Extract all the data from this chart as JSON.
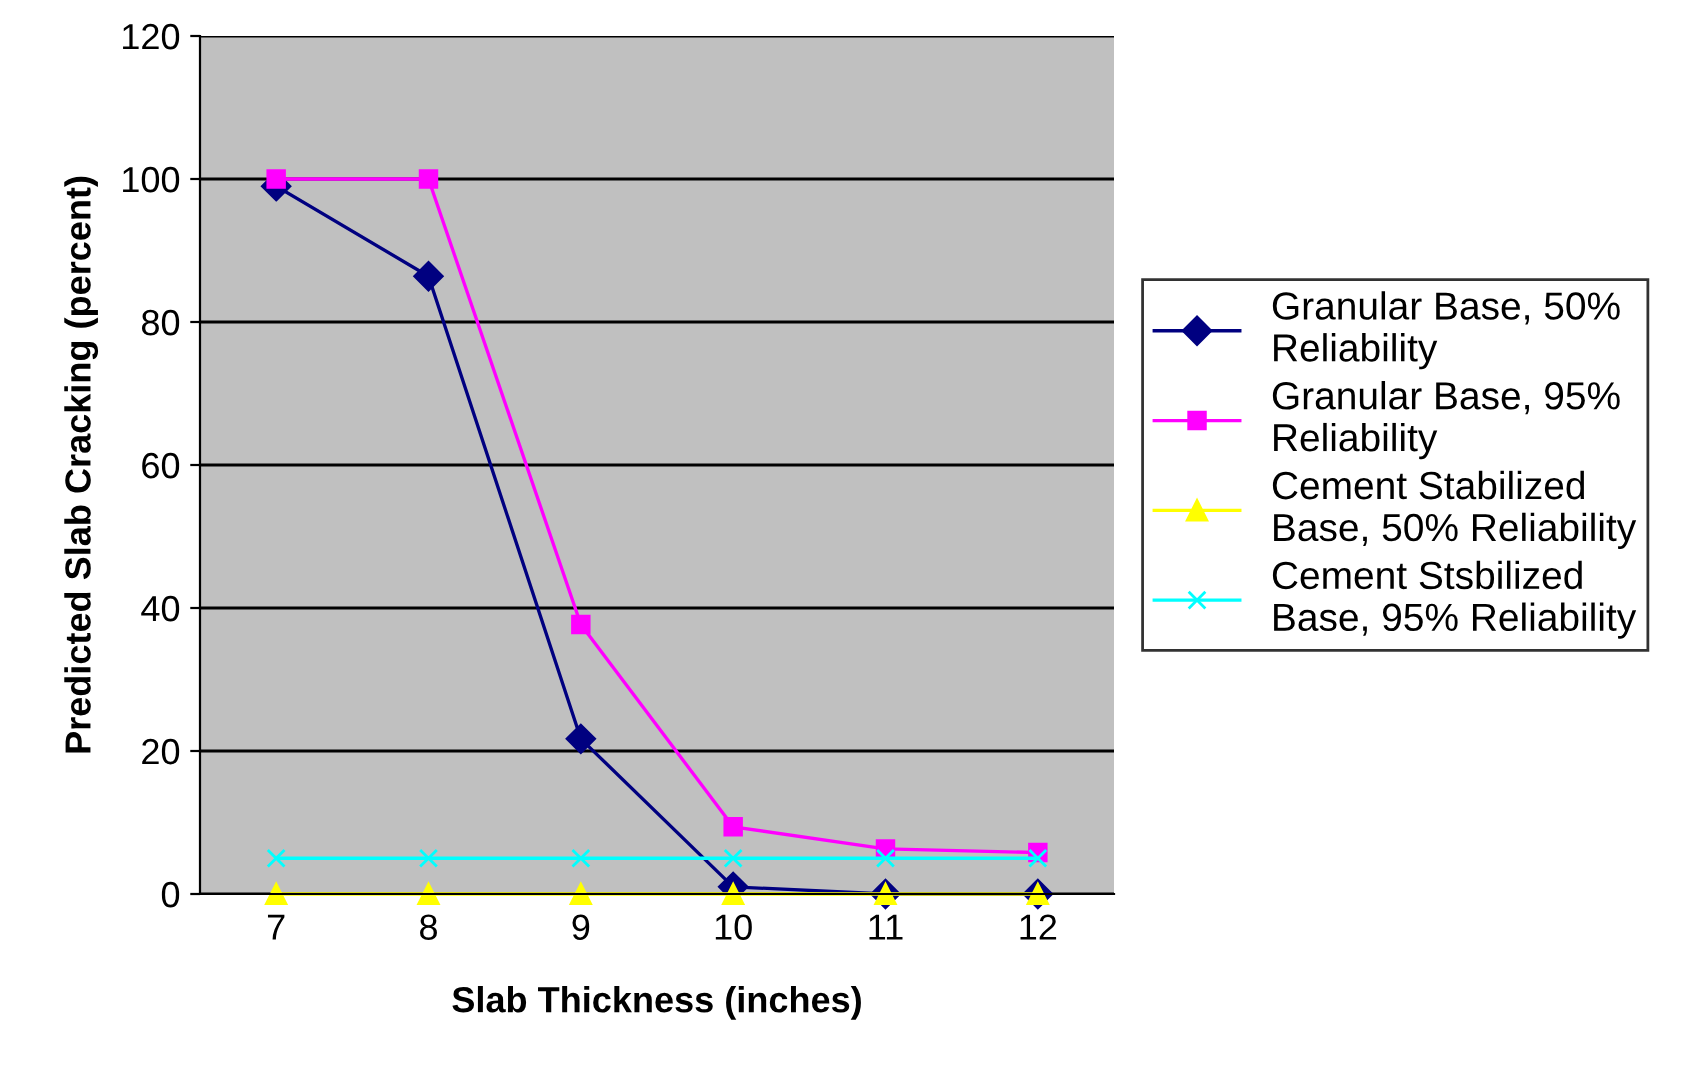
{
  "chart_data": {
    "type": "line",
    "xlabel": "Slab Thickness (inches)",
    "ylabel": "Predicted Slab Cracking (percent)",
    "categories": [
      "7",
      "8",
      "9",
      "10",
      "11",
      "12"
    ],
    "series": [
      {
        "name": "Granular Base, 50% Reliability",
        "color": "#000080",
        "marker": "diamond",
        "values": [
          99,
          86.4,
          21.7,
          1,
          0,
          0
        ]
      },
      {
        "name": "Granular Base, 95% Reliability",
        "color": "#ff00ff",
        "marker": "square",
        "values": [
          100,
          100,
          37.7,
          9.4,
          6.3,
          5.8
        ]
      },
      {
        "name": "Cement Stabilized Base, 50% Reliability",
        "color": "#ffff00",
        "marker": "triangle",
        "values": [
          0,
          0,
          0,
          0,
          0,
          0
        ]
      },
      {
        "name": "Cement Stsbilized Base, 95% Reliability",
        "color": "#00ffff",
        "marker": "cross",
        "values": [
          5,
          5,
          5,
          5,
          5,
          5
        ]
      }
    ],
    "ylim": [
      0,
      120
    ],
    "yticks": [
      0,
      20,
      40,
      60,
      80,
      100,
      120
    ],
    "grid": "y",
    "legend": "right",
    "line_style": "solid"
  }
}
